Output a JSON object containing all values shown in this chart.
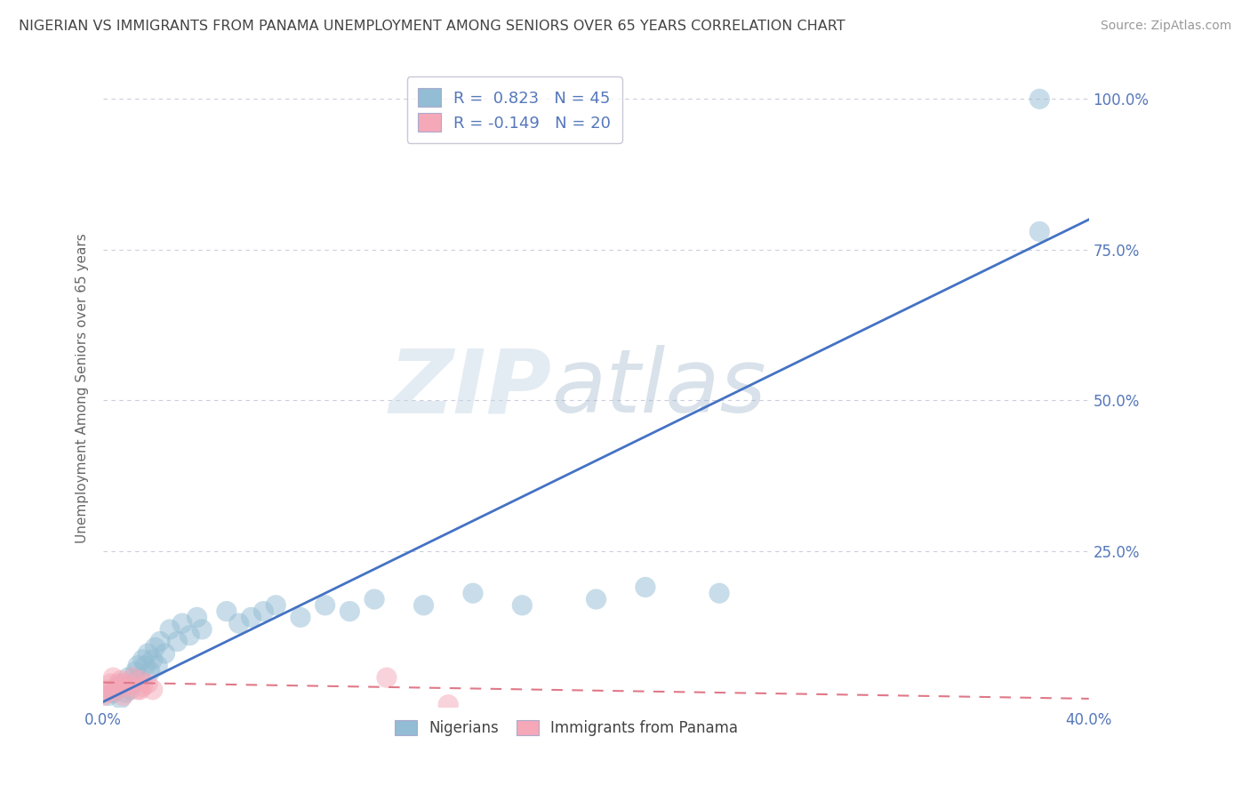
{
  "title": "NIGERIAN VS IMMIGRANTS FROM PANAMA UNEMPLOYMENT AMONG SENIORS OVER 65 YEARS CORRELATION CHART",
  "source": "Source: ZipAtlas.com",
  "watermark_zip": "ZIP",
  "watermark_atlas": "atlas",
  "xlim": [
    0.0,
    0.4
  ],
  "ylim": [
    -0.01,
    1.05
  ],
  "nigerian_scatter_x": [
    0.002,
    0.004,
    0.005,
    0.006,
    0.007,
    0.008,
    0.009,
    0.01,
    0.011,
    0.012,
    0.013,
    0.014,
    0.015,
    0.016,
    0.017,
    0.018,
    0.019,
    0.02,
    0.021,
    0.022,
    0.023,
    0.025,
    0.027,
    0.03,
    0.032,
    0.035,
    0.038,
    0.04,
    0.05,
    0.055,
    0.06,
    0.065,
    0.07,
    0.08,
    0.09,
    0.1,
    0.11,
    0.13,
    0.15,
    0.17,
    0.2,
    0.22,
    0.25,
    0.38,
    0.38
  ],
  "nigerian_scatter_y": [
    0.01,
    0.015,
    0.02,
    0.025,
    0.005,
    0.03,
    0.015,
    0.04,
    0.02,
    0.03,
    0.05,
    0.06,
    0.04,
    0.07,
    0.06,
    0.08,
    0.05,
    0.07,
    0.09,
    0.06,
    0.1,
    0.08,
    0.12,
    0.1,
    0.13,
    0.11,
    0.14,
    0.12,
    0.15,
    0.13,
    0.14,
    0.15,
    0.16,
    0.14,
    0.16,
    0.15,
    0.17,
    0.16,
    0.18,
    0.16,
    0.17,
    0.19,
    0.18,
    0.78,
    1.0
  ],
  "panama_scatter_x": [
    0.0,
    0.001,
    0.002,
    0.003,
    0.004,
    0.005,
    0.006,
    0.007,
    0.008,
    0.009,
    0.01,
    0.012,
    0.014,
    0.015,
    0.016,
    0.018,
    0.02,
    0.115,
    0.14,
    0.015
  ],
  "panama_scatter_y": [
    0.01,
    0.02,
    0.015,
    0.03,
    0.04,
    0.02,
    0.03,
    0.035,
    0.01,
    0.025,
    0.03,
    0.04,
    0.02,
    0.035,
    0.025,
    0.03,
    0.02,
    0.04,
    -0.005,
    0.02
  ],
  "blue_line_x0": 0.0,
  "blue_line_y0": 0.0,
  "blue_line_x1": 0.4,
  "blue_line_y1": 0.8,
  "pink_line_x0": 0.0,
  "pink_line_y0": 0.032,
  "pink_line_x1": 0.4,
  "pink_line_y1": 0.005,
  "blue_scatter_color": "#93bdd4",
  "pink_scatter_color": "#f5a8b8",
  "blue_line_color": "#4472c4",
  "pink_line_color": "#e07888",
  "grid_color": "#ccccdd",
  "title_color": "#444444",
  "axis_label_color": "#5577bb",
  "background_color": "#ffffff",
  "legend1_R": "R =  0.823",
  "legend1_N": "N = 45",
  "legend2_R": "R = -0.149",
  "legend2_N": "N = 20",
  "legend_R_color": "#5577bb",
  "legend_N_color": "#222222"
}
